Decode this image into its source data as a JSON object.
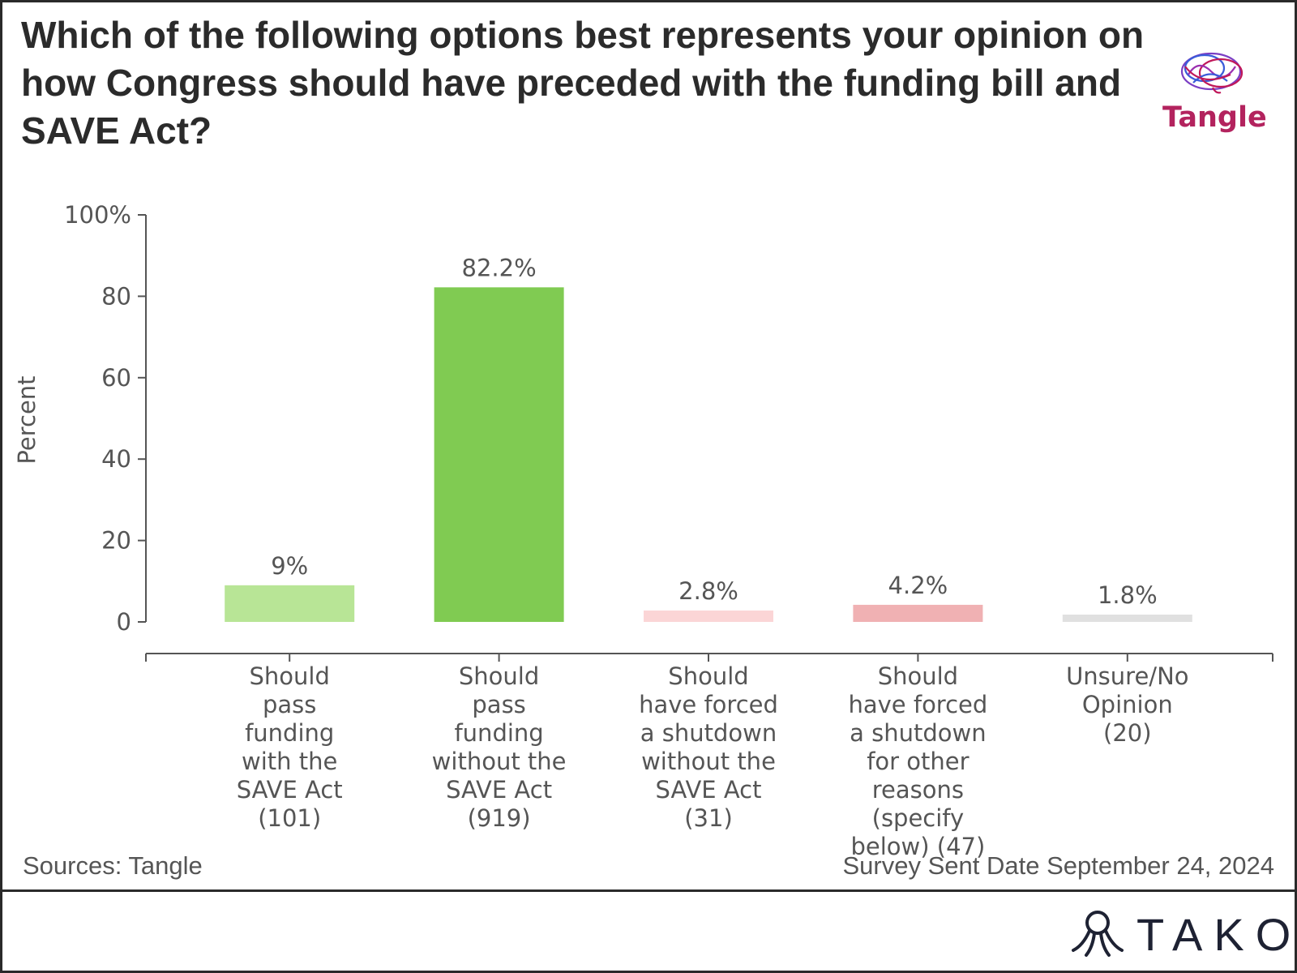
{
  "title": "Which of the following options best represents your opinion on how Congress should have preceded with the funding bill and SAVE Act?",
  "brand": {
    "name": "Tangle",
    "icon": "brain-icon",
    "colors": [
      "#c0185a",
      "#7b3fc4",
      "#3a5bd9"
    ]
  },
  "footer": {
    "source": "Sources: Tangle",
    "date": "Survey Sent Date September 24, 2024",
    "logo_text": "TAKO",
    "logo_icon": "octopus-icon"
  },
  "chart_data": {
    "type": "bar",
    "ylabel": "Percent",
    "xlabel": "",
    "ylim": [
      0,
      100
    ],
    "yticks": [
      0,
      20,
      40,
      60,
      80,
      100
    ],
    "ytick_labels": [
      "0",
      "20",
      "40",
      "60",
      "80",
      "100%"
    ],
    "grid": false,
    "categories": [
      [
        "Should",
        "pass",
        "funding",
        "with the",
        "SAVE Act",
        "(101)"
      ],
      [
        "Should",
        "pass",
        "funding",
        "without the",
        "SAVE Act",
        "(919)"
      ],
      [
        "Should",
        "have forced",
        "a shutdown",
        "without the",
        "SAVE Act",
        "(31)"
      ],
      [
        "Should",
        "have forced",
        "a shutdown",
        "for other",
        "reasons",
        "(specify",
        "below) (47)"
      ],
      [
        "Unsure/No",
        "Opinion",
        "(20)"
      ]
    ],
    "values": [
      9,
      82.2,
      2.8,
      4.2,
      1.8
    ],
    "value_labels": [
      "9%",
      "82.2%",
      "2.8%",
      "4.2%",
      "1.8%"
    ],
    "colors": [
      "#b8e596",
      "#80cb52",
      "#fbd5d6",
      "#f0b1b3",
      "#e0e0e0"
    ]
  }
}
